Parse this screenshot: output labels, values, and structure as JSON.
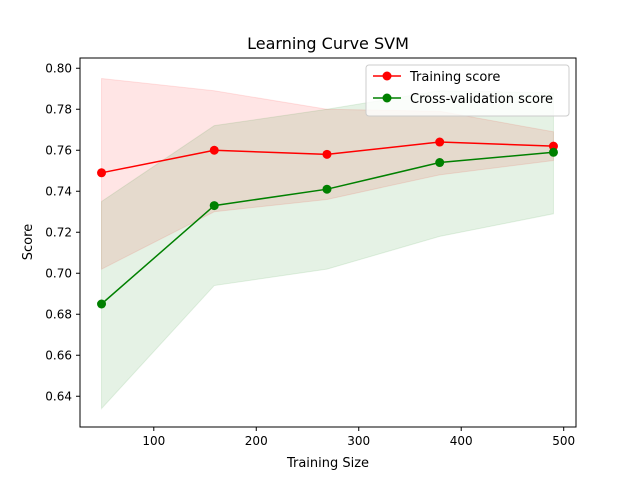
{
  "chart_data": {
    "type": "line",
    "title": "Learning Curve SVM",
    "xlabel": "Training Size",
    "ylabel": "Score",
    "xlim": [
      28,
      512
    ],
    "ylim": [
      0.625,
      0.805
    ],
    "xticks": [
      100,
      200,
      300,
      400,
      500
    ],
    "yticks": [
      0.64,
      0.66,
      0.68,
      0.7,
      0.72,
      0.74,
      0.76,
      0.78,
      0.8
    ],
    "ytick_labels": [
      "0.64",
      "0.66",
      "0.68",
      "0.70",
      "0.72",
      "0.74",
      "0.76",
      "0.78",
      "0.80"
    ],
    "x": [
      49,
      159,
      269,
      379,
      490
    ],
    "legend_position": "top-right",
    "grid": false,
    "series": [
      {
        "name": "Training score",
        "color": "#ff0000",
        "band_color": "#ff0000",
        "values": [
          0.749,
          0.76,
          0.758,
          0.764,
          0.762
        ],
        "upper": [
          0.795,
          0.789,
          0.78,
          0.779,
          0.769
        ],
        "lower": [
          0.702,
          0.73,
          0.736,
          0.748,
          0.755
        ]
      },
      {
        "name": "Cross-validation score",
        "color": "#008000",
        "band_color": "#008000",
        "values": [
          0.685,
          0.733,
          0.741,
          0.754,
          0.759
        ],
        "upper": [
          0.735,
          0.772,
          0.78,
          0.789,
          0.788
        ],
        "lower": [
          0.634,
          0.694,
          0.702,
          0.718,
          0.729
        ]
      }
    ]
  }
}
